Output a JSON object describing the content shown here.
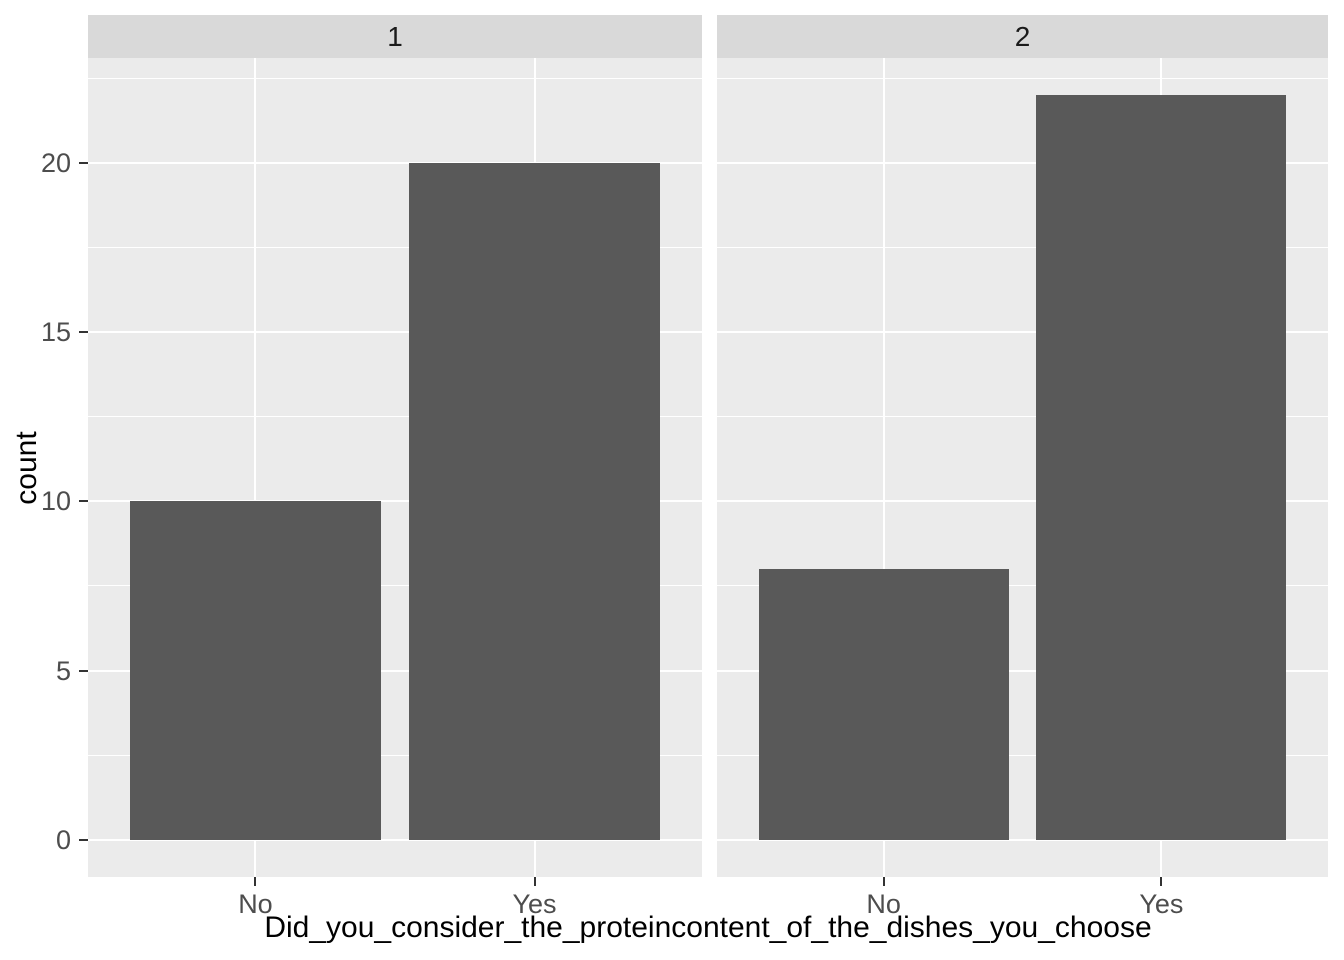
{
  "figure": {
    "colors": {
      "background": "#FFFFFF",
      "panel_background": "#EBEBEB",
      "strip_background": "#D9D9D9",
      "grid": "#FFFFFF",
      "bar_fill": "#595959",
      "tick_mark": "#333333",
      "tick_label": "#4D4D4D",
      "axis_title": "#000000",
      "strip_label": "#1A1A1A"
    }
  },
  "chart_data": {
    "type": "bar",
    "faceted": true,
    "title": "",
    "xlabel": "Did_you_consider_the_proteincontent_of_the_dishes_you_choose",
    "ylabel": "count",
    "categories": [
      "No",
      "Yes"
    ],
    "facets": [
      {
        "label": "1",
        "values": [
          10,
          20
        ]
      },
      {
        "label": "2",
        "values": [
          8,
          22
        ]
      }
    ],
    "y_ticks": [
      0,
      5,
      10,
      15,
      20
    ],
    "y_minor_gridlines": [
      2.5,
      7.5,
      12.5,
      17.5,
      22.5
    ],
    "ylim": [
      -1.1,
      23.1
    ],
    "grid": true,
    "legend_position": "none"
  }
}
